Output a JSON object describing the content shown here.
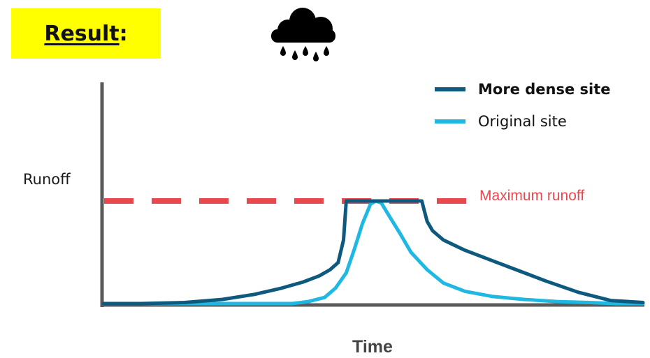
{
  "header": {
    "title": "Result",
    "title_suffix": ":",
    "highlight_color": "#FFFF00"
  },
  "weather_icon": "rain-cloud-icon",
  "chart_data": {
    "type": "line",
    "ylabel": "Runoff",
    "xlabel": "Time",
    "xlim": [
      0,
      100
    ],
    "ylim": [
      0,
      100
    ],
    "grid": false,
    "legend_position": "top-right",
    "series": [
      {
        "name": "More dense site",
        "color": "#0E5A7E",
        "bold_label": true,
        "x": [
          0,
          7,
          15,
          22,
          28,
          33,
          37,
          40,
          42,
          43.5,
          44.5,
          45,
          46,
          51,
          56,
          59,
          59.5,
          60,
          61,
          63,
          67,
          72,
          77,
          82,
          88,
          94,
          100
        ],
        "y": [
          0,
          0,
          1,
          4,
          9,
          15,
          21,
          27,
          33,
          40,
          62,
          100,
          100,
          100,
          100,
          100,
          90,
          80,
          71,
          62,
          52,
          42,
          32,
          22,
          11,
          3,
          1
        ]
      },
      {
        "name": "Original site",
        "color": "#1FB8E2",
        "bold_label": false,
        "x": [
          0,
          10,
          20,
          30,
          35,
          38,
          41,
          43,
          45,
          46.5,
          48,
          49.5,
          50.5,
          51.5,
          53,
          55,
          57,
          60,
          63,
          67,
          72,
          78,
          84,
          90,
          95,
          100
        ],
        "y": [
          0,
          0,
          0,
          0,
          0,
          2,
          6,
          15,
          30,
          53,
          78,
          97,
          100,
          98,
          85,
          68,
          50,
          33,
          20,
          12,
          7,
          4,
          2,
          1,
          0,
          0
        ]
      }
    ],
    "threshold": {
      "label": "Maximum runoff",
      "value": 100,
      "color": "#E8484E",
      "style": "dashed"
    }
  }
}
